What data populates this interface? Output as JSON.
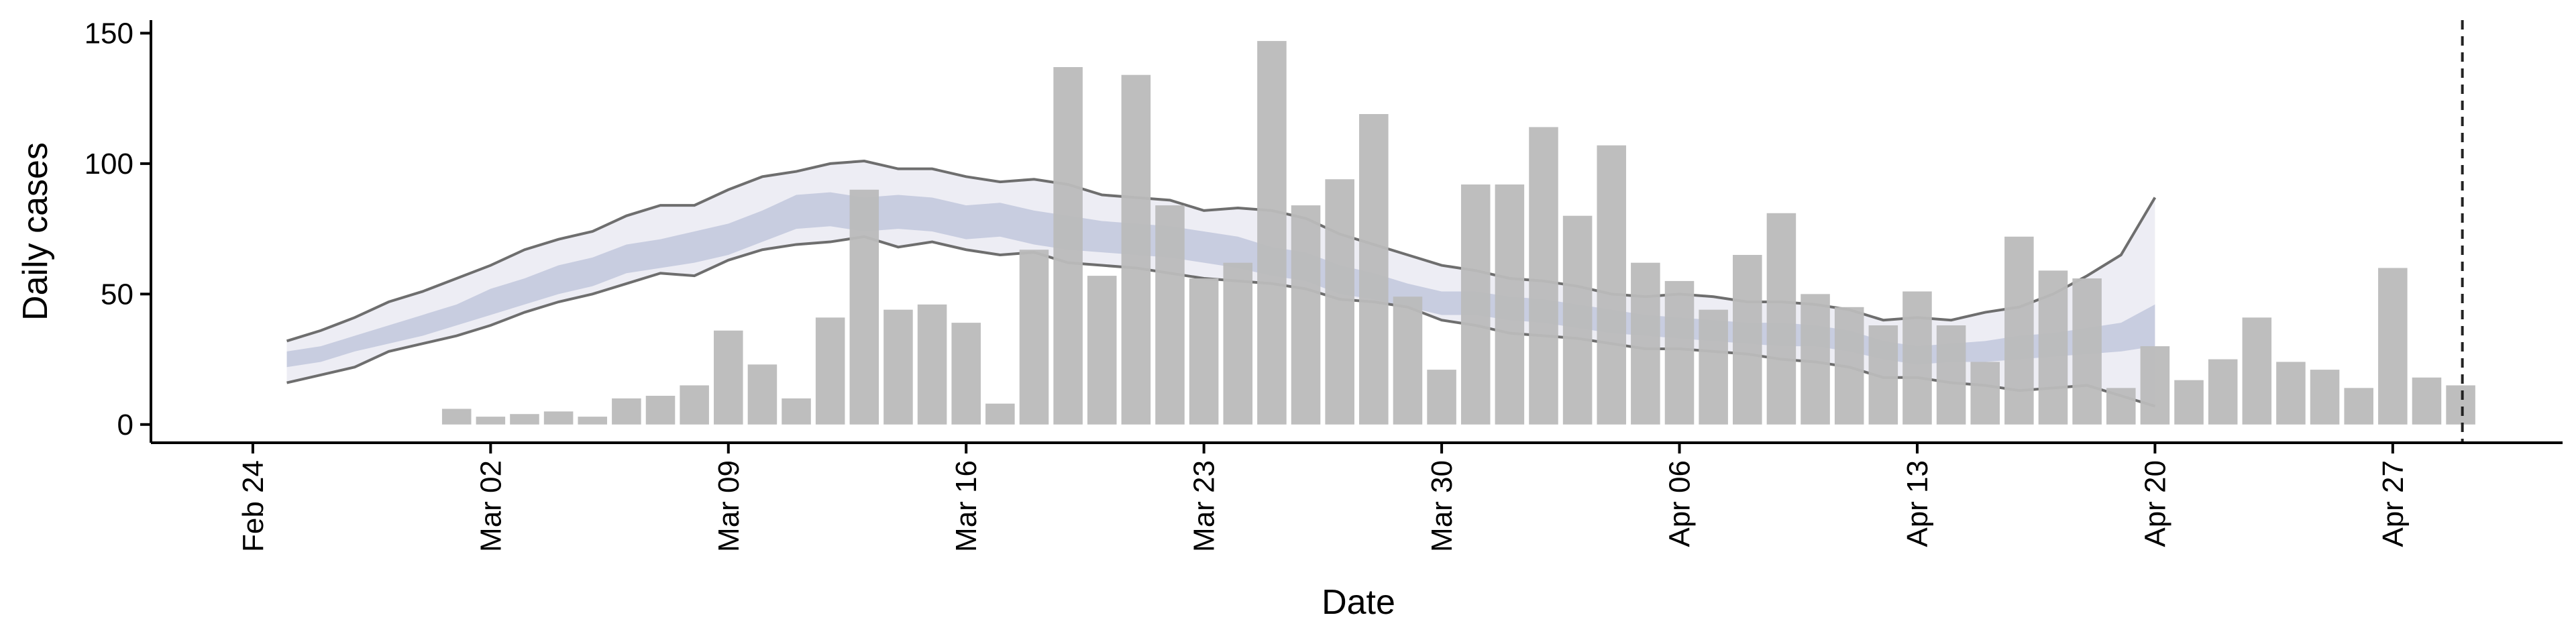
{
  "chart_data": {
    "type": "bar",
    "title": "",
    "xlabel": "Date",
    "ylabel": "Daily cases",
    "ylim": [
      -7,
      155
    ],
    "yticks": [
      0,
      50,
      100,
      150
    ],
    "x_tick_labels": [
      "Feb 24",
      "Mar 02",
      "Mar 09",
      "Mar 16",
      "Mar 23",
      "Mar 30",
      "Apr 06",
      "Apr 13",
      "Apr 20",
      "Apr 27"
    ],
    "x_tick_dates": [
      "2020-02-24",
      "2020-03-02",
      "2020-03-09",
      "2020-03-16",
      "2020-03-23",
      "2020-03-30",
      "2020-04-06",
      "2020-04-13",
      "2020-04-20",
      "2020-04-27"
    ],
    "xlim": [
      "2020-02-21",
      "2020-05-02"
    ],
    "grid": false,
    "colors": {
      "bars": "#bbbbbb",
      "band_outer": "#eaeaf2",
      "band_inner": "#c3c9de",
      "band_lines": "#6e6e6e",
      "vline": "#222222"
    },
    "bars": {
      "name": "Daily cases",
      "dates": [
        "2020-03-01",
        "2020-03-02",
        "2020-03-03",
        "2020-03-04",
        "2020-03-05",
        "2020-03-06",
        "2020-03-07",
        "2020-03-08",
        "2020-03-09",
        "2020-03-10",
        "2020-03-11",
        "2020-03-12",
        "2020-03-13",
        "2020-03-14",
        "2020-03-15",
        "2020-03-16",
        "2020-03-17",
        "2020-03-18",
        "2020-03-19",
        "2020-03-20",
        "2020-03-21",
        "2020-03-22",
        "2020-03-23",
        "2020-03-24",
        "2020-03-25",
        "2020-03-26",
        "2020-03-27",
        "2020-03-28",
        "2020-03-29",
        "2020-03-30",
        "2020-03-31",
        "2020-04-01",
        "2020-04-02",
        "2020-04-03",
        "2020-04-04",
        "2020-04-05",
        "2020-04-06",
        "2020-04-07",
        "2020-04-08",
        "2020-04-09",
        "2020-04-10",
        "2020-04-11",
        "2020-04-12",
        "2020-04-13",
        "2020-04-14",
        "2020-04-15",
        "2020-04-16",
        "2020-04-17",
        "2020-04-18",
        "2020-04-19",
        "2020-04-20",
        "2020-04-21",
        "2020-04-22",
        "2020-04-23",
        "2020-04-24",
        "2020-04-25",
        "2020-04-26",
        "2020-04-27",
        "2020-04-28",
        "2020-04-29"
      ],
      "values": [
        6,
        3,
        4,
        5,
        3,
        10,
        11,
        15,
        36,
        23,
        10,
        41,
        90,
        44,
        46,
        39,
        8,
        67,
        137,
        57,
        134,
        84,
        56,
        62,
        147,
        84,
        94,
        119,
        49,
        21,
        92,
        92,
        114,
        80,
        107,
        62,
        55,
        44,
        65,
        81,
        50,
        45,
        38,
        51,
        38,
        24,
        72,
        59,
        56,
        14,
        30,
        17,
        25,
        41,
        24,
        21,
        14,
        60,
        18,
        15
      ]
    },
    "band": {
      "dates": [
        "2020-02-25",
        "2020-02-26",
        "2020-02-27",
        "2020-02-28",
        "2020-02-29",
        "2020-03-01",
        "2020-03-02",
        "2020-03-03",
        "2020-03-04",
        "2020-03-05",
        "2020-03-06",
        "2020-03-07",
        "2020-03-08",
        "2020-03-09",
        "2020-03-10",
        "2020-03-11",
        "2020-03-12",
        "2020-03-13",
        "2020-03-14",
        "2020-03-15",
        "2020-03-16",
        "2020-03-17",
        "2020-03-18",
        "2020-03-19",
        "2020-03-20",
        "2020-03-21",
        "2020-03-22",
        "2020-03-23",
        "2020-03-24",
        "2020-03-25",
        "2020-03-26",
        "2020-03-27",
        "2020-03-28",
        "2020-03-29",
        "2020-03-30",
        "2020-03-31",
        "2020-04-01",
        "2020-04-02",
        "2020-04-03",
        "2020-04-04",
        "2020-04-05",
        "2020-04-06",
        "2020-04-07",
        "2020-04-08",
        "2020-04-09",
        "2020-04-10",
        "2020-04-11",
        "2020-04-12",
        "2020-04-13",
        "2020-04-14",
        "2020-04-15",
        "2020-04-16",
        "2020-04-17",
        "2020-04-18",
        "2020-04-19",
        "2020-04-20"
      ],
      "outer_upper": [
        32,
        36,
        41,
        47,
        51,
        56,
        61,
        67,
        71,
        74,
        80,
        84,
        84,
        90,
        95,
        97,
        100,
        101,
        98,
        98,
        95,
        93,
        94,
        92,
        88,
        87,
        86,
        82,
        83,
        82,
        79,
        73,
        69,
        65,
        61,
        59,
        56,
        55,
        53,
        50,
        49,
        50,
        49,
        47,
        47,
        46,
        44,
        40,
        41,
        40,
        43,
        45,
        50,
        57,
        65,
        87
      ],
      "outer_lower": [
        16,
        19,
        22,
        28,
        31,
        34,
        38,
        43,
        47,
        50,
        54,
        58,
        57,
        63,
        67,
        69,
        70,
        72,
        68,
        70,
        67,
        65,
        66,
        62,
        61,
        60,
        58,
        56,
        55,
        54,
        52,
        48,
        47,
        45,
        40,
        38,
        35,
        34,
        33,
        31,
        29,
        29,
        28,
        27,
        25,
        24,
        22,
        18,
        18,
        16,
        15,
        13,
        14,
        15,
        11,
        7
      ],
      "inner_upper": [
        28,
        30,
        34,
        38,
        42,
        46,
        52,
        56,
        61,
        64,
        69,
        71,
        74,
        77,
        82,
        88,
        89,
        87,
        88,
        87,
        84,
        85,
        82,
        80,
        78,
        77,
        76,
        74,
        72,
        68,
        66,
        61,
        58,
        54,
        51,
        51,
        49,
        48,
        46,
        44,
        42,
        41,
        40,
        39,
        39,
        38,
        36,
        32,
        30,
        31,
        32,
        34,
        35,
        37,
        39,
        46
      ],
      "inner_lower": [
        22,
        24,
        28,
        31,
        34,
        38,
        42,
        46,
        50,
        53,
        58,
        60,
        62,
        65,
        70,
        75,
        76,
        74,
        75,
        74,
        71,
        72,
        69,
        67,
        66,
        65,
        64,
        62,
        60,
        57,
        55,
        50,
        48,
        45,
        42,
        42,
        40,
        39,
        37,
        35,
        34,
        33,
        32,
        31,
        30,
        30,
        28,
        25,
        23,
        24,
        24,
        25,
        26,
        27,
        28,
        30
      ]
    },
    "vline_date": "2020-04-29"
  }
}
